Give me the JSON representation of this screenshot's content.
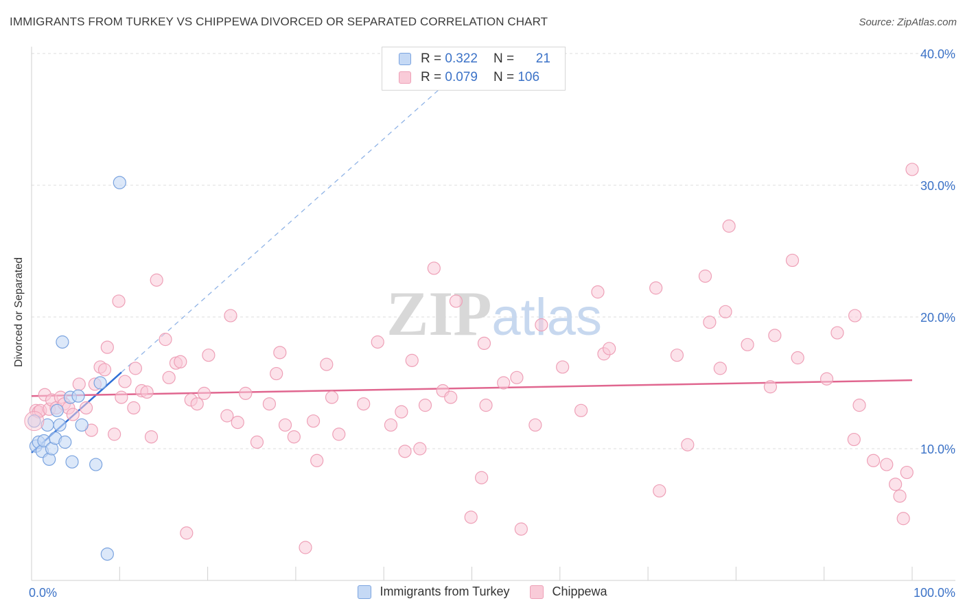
{
  "title": "IMMIGRANTS FROM TURKEY VS CHIPPEWA DIVORCED OR SEPARATED CORRELATION CHART",
  "source": "Source: ZipAtlas.com",
  "watermark": "ZIPatlas",
  "legend_stats": [
    {
      "r_label": "R =",
      "r": "0.322",
      "n_label": "N =",
      "n": "21"
    },
    {
      "r_label": "R =",
      "r": "0.079",
      "n_label": "N =",
      "n": "106"
    }
  ],
  "colors": {
    "turkey_fill": "#c5d9f5",
    "turkey_stroke": "#7aa3df",
    "turkey_line": "#2f6fd6",
    "chippewa_fill": "#f9cbd8",
    "chippewa_stroke": "#eea0b7",
    "chippewa_line": "#e0668f",
    "axis_text": "#3b72c7"
  },
  "chart_data": {
    "type": "scatter",
    "title": "IMMIGRANTS FROM TURKEY VS CHIPPEWA DIVORCED OR SEPARATED CORRELATION CHART",
    "xlabel": "",
    "ylabel": "Divorced or Separated",
    "xlim": [
      0,
      100
    ],
    "ylim": [
      0,
      40
    ],
    "x_tick_labels": [
      "0.0%",
      "100.0%"
    ],
    "y_ticks": [
      10,
      20,
      30,
      40
    ],
    "y_tick_labels": [
      "10.0%",
      "20.0%",
      "30.0%",
      "40.0%"
    ],
    "series": [
      {
        "name": "Immigrants from Turkey",
        "points": [
          [
            0.3,
            12.1
          ],
          [
            0.5,
            10.2
          ],
          [
            0.8,
            10.5
          ],
          [
            1.2,
            9.8
          ],
          [
            1.4,
            10.6
          ],
          [
            1.8,
            11.8
          ],
          [
            2.0,
            9.2
          ],
          [
            2.3,
            10.0
          ],
          [
            2.7,
            10.8
          ],
          [
            2.9,
            12.9
          ],
          [
            3.2,
            11.8
          ],
          [
            3.5,
            18.1
          ],
          [
            3.8,
            10.5
          ],
          [
            4.4,
            13.9
          ],
          [
            4.6,
            9.0
          ],
          [
            5.3,
            14.0
          ],
          [
            5.7,
            11.8
          ],
          [
            7.3,
            8.8
          ],
          [
            7.8,
            15.0
          ],
          [
            8.6,
            2.0
          ],
          [
            10.0,
            30.2
          ]
        ],
        "trend": {
          "x": [
            0,
            10.2
          ],
          "y": [
            9.7,
            15.8
          ],
          "dashed_extension": {
            "x": [
              10.2,
              46.5
            ],
            "y": [
              15.8,
              37.4
            ]
          }
        }
      },
      {
        "name": "Chippewa",
        "points": [
          [
            0.5,
            12.9
          ],
          [
            0.8,
            12.8
          ],
          [
            1.0,
            12.9
          ],
          [
            1.5,
            14.1
          ],
          [
            2.0,
            13.0
          ],
          [
            2.3,
            13.7
          ],
          [
            2.8,
            13.1
          ],
          [
            3.3,
            13.9
          ],
          [
            3.7,
            13.4
          ],
          [
            4.2,
            13.1
          ],
          [
            4.7,
            12.6
          ],
          [
            5.4,
            14.9
          ],
          [
            6.2,
            13.1
          ],
          [
            6.8,
            11.4
          ],
          [
            7.2,
            14.9
          ],
          [
            7.8,
            16.2
          ],
          [
            8.3,
            16.0
          ],
          [
            8.6,
            17.7
          ],
          [
            9.4,
            11.1
          ],
          [
            9.9,
            21.2
          ],
          [
            10.2,
            13.9
          ],
          [
            10.6,
            15.1
          ],
          [
            11.6,
            13.1
          ],
          [
            11.8,
            16.1
          ],
          [
            12.5,
            14.4
          ],
          [
            13.1,
            14.3
          ],
          [
            13.6,
            10.9
          ],
          [
            14.2,
            22.8
          ],
          [
            15.2,
            18.3
          ],
          [
            15.6,
            15.4
          ],
          [
            16.4,
            16.5
          ],
          [
            16.9,
            16.6
          ],
          [
            17.6,
            3.6
          ],
          [
            18.1,
            13.7
          ],
          [
            18.8,
            13.4
          ],
          [
            19.6,
            14.2
          ],
          [
            20.1,
            17.1
          ],
          [
            22.2,
            12.5
          ],
          [
            22.6,
            20.1
          ],
          [
            23.4,
            12.0
          ],
          [
            24.3,
            14.2
          ],
          [
            25.6,
            10.5
          ],
          [
            27.0,
            13.4
          ],
          [
            27.8,
            15.7
          ],
          [
            28.2,
            17.3
          ],
          [
            28.8,
            11.8
          ],
          [
            29.8,
            10.9
          ],
          [
            31.1,
            2.5
          ],
          [
            32.0,
            12.1
          ],
          [
            32.4,
            9.1
          ],
          [
            33.5,
            16.4
          ],
          [
            34.1,
            13.9
          ],
          [
            34.9,
            11.1
          ],
          [
            37.7,
            13.4
          ],
          [
            39.3,
            18.1
          ],
          [
            40.8,
            11.8
          ],
          [
            42.4,
            9.8
          ],
          [
            43.2,
            16.7
          ],
          [
            44.1,
            10.0
          ],
          [
            44.7,
            13.3
          ],
          [
            45.7,
            23.7
          ],
          [
            46.7,
            14.4
          ],
          [
            47.6,
            13.9
          ],
          [
            48.2,
            21.2
          ],
          [
            49.9,
            4.8
          ],
          [
            51.1,
            7.8
          ],
          [
            51.4,
            18.0
          ],
          [
            51.6,
            13.3
          ],
          [
            53.6,
            15.0
          ],
          [
            55.1,
            15.4
          ],
          [
            55.6,
            3.9
          ],
          [
            57.2,
            11.8
          ],
          [
            57.9,
            19.4
          ],
          [
            60.3,
            16.2
          ],
          [
            62.4,
            12.9
          ],
          [
            64.3,
            21.9
          ],
          [
            65.0,
            17.2
          ],
          [
            65.6,
            17.6
          ],
          [
            70.9,
            22.2
          ],
          [
            71.3,
            6.8
          ],
          [
            73.3,
            17.1
          ],
          [
            74.5,
            10.3
          ],
          [
            76.5,
            23.1
          ],
          [
            77.0,
            19.6
          ],
          [
            78.2,
            16.1
          ],
          [
            78.8,
            20.4
          ],
          [
            79.2,
            26.9
          ],
          [
            81.3,
            17.9
          ],
          [
            83.9,
            14.7
          ],
          [
            84.4,
            18.6
          ],
          [
            86.4,
            24.3
          ],
          [
            87.0,
            16.9
          ],
          [
            90.3,
            15.3
          ],
          [
            91.5,
            18.8
          ],
          [
            93.4,
            10.7
          ],
          [
            94.0,
            13.3
          ],
          [
            95.6,
            9.1
          ],
          [
            97.1,
            8.8
          ],
          [
            98.1,
            7.3
          ],
          [
            98.6,
            6.4
          ],
          [
            99.0,
            4.7
          ],
          [
            99.4,
            8.2
          ],
          [
            100.0,
            31.2
          ],
          [
            93.5,
            20.1
          ],
          [
            42.0,
            12.8
          ]
        ],
        "trend": {
          "x": [
            0,
            100
          ],
          "y": [
            14.0,
            15.2
          ]
        }
      }
    ]
  }
}
